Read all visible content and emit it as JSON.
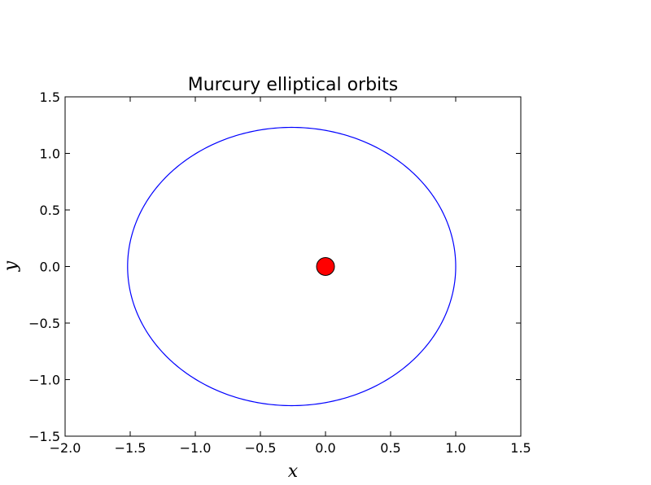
{
  "chart_data": {
    "type": "line",
    "title": "Murcury elliptical orbits",
    "xlabel": "x",
    "ylabel": "y",
    "xlim": [
      -2.0,
      1.5
    ],
    "ylim": [
      -1.5,
      1.5
    ],
    "x_ticks": [
      -2.0,
      -1.5,
      -1.0,
      -0.5,
      0.0,
      0.5,
      1.0,
      1.5
    ],
    "y_ticks": [
      -1.5,
      -1.0,
      -0.5,
      0.0,
      0.5,
      1.0,
      1.5
    ],
    "x_tick_labels": [
      "−2.0",
      "−1.5",
      "−1.0",
      "−0.5",
      "0.0",
      "0.5",
      "1.0",
      "1.5"
    ],
    "y_tick_labels": [
      "−1.5",
      "−1.0",
      "−0.5",
      "0.0",
      "0.5",
      "1.0",
      "1.5"
    ],
    "grid": false,
    "series": [
      {
        "kind": "orbit",
        "color": "#0000ff",
        "center_x": -0.26,
        "center_y": 0.0,
        "semi_major_x": 1.26,
        "semi_minor_y": 1.23,
        "perihelion_x": 1.0,
        "aphelion_x": -1.52
      },
      {
        "kind": "sun",
        "color": "#ff0000",
        "x": [
          0.0
        ],
        "y": [
          0.0
        ]
      }
    ]
  }
}
